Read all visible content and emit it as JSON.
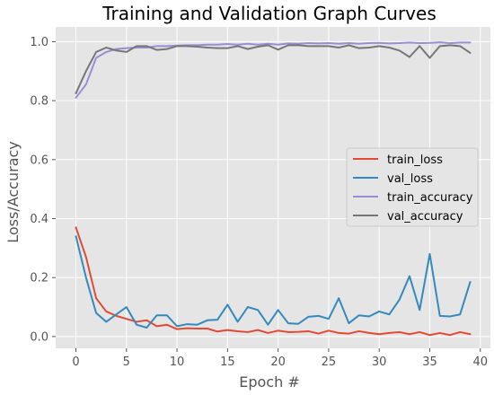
{
  "chart_data": {
    "type": "line",
    "title": "Training and Validation Graph Curves",
    "xlabel": "Epoch #",
    "ylabel": "Loss/Accuracy",
    "xlim": [
      -2,
      41
    ],
    "ylim": [
      -0.04,
      1.05
    ],
    "xticks": [
      0,
      5,
      10,
      15,
      20,
      25,
      30,
      35,
      40
    ],
    "yticks": [
      0.0,
      0.2,
      0.4,
      0.6,
      0.8,
      1.0
    ],
    "xtick_labels": [
      "0",
      "5",
      "10",
      "15",
      "20",
      "25",
      "30",
      "35",
      "40"
    ],
    "ytick_labels": [
      "0.0",
      "0.2",
      "0.4",
      "0.6",
      "0.8",
      "1.0"
    ],
    "grid": true,
    "legend_position": "center-right",
    "x": [
      0,
      1,
      2,
      3,
      4,
      5,
      6,
      7,
      8,
      9,
      10,
      11,
      12,
      13,
      14,
      15,
      16,
      17,
      18,
      19,
      20,
      21,
      22,
      23,
      24,
      25,
      26,
      27,
      28,
      29,
      30,
      31,
      32,
      33,
      34,
      35,
      36,
      37,
      38,
      39
    ],
    "series": [
      {
        "name": "train_loss",
        "color": "#E24A33",
        "values": [
          0.37,
          0.27,
          0.13,
          0.085,
          0.07,
          0.06,
          0.05,
          0.055,
          0.035,
          0.04,
          0.025,
          0.028,
          0.027,
          0.027,
          0.017,
          0.022,
          0.018,
          0.015,
          0.022,
          0.012,
          0.02,
          0.015,
          0.016,
          0.018,
          0.01,
          0.02,
          0.012,
          0.01,
          0.018,
          0.012,
          0.008,
          0.012,
          0.015,
          0.008,
          0.015,
          0.005,
          0.012,
          0.005,
          0.015,
          0.008
        ]
      },
      {
        "name": "val_loss",
        "color": "#348ABD",
        "values": [
          0.34,
          0.2,
          0.08,
          0.05,
          0.075,
          0.1,
          0.04,
          0.03,
          0.072,
          0.072,
          0.035,
          0.042,
          0.04,
          0.055,
          0.057,
          0.108,
          0.05,
          0.1,
          0.09,
          0.04,
          0.09,
          0.045,
          0.043,
          0.067,
          0.07,
          0.06,
          0.13,
          0.045,
          0.072,
          0.068,
          0.085,
          0.075,
          0.125,
          0.205,
          0.09,
          0.28,
          0.07,
          0.068,
          0.075,
          0.185
        ]
      },
      {
        "name": "train_accuracy",
        "color": "#988ED5",
        "values": [
          0.81,
          0.855,
          0.945,
          0.965,
          0.975,
          0.978,
          0.98,
          0.98,
          0.985,
          0.985,
          0.987,
          0.988,
          0.988,
          0.99,
          0.99,
          0.992,
          0.99,
          0.993,
          0.99,
          0.993,
          0.99,
          0.994,
          0.993,
          0.995,
          0.994,
          0.995,
          0.993,
          0.995,
          0.993,
          0.995,
          0.996,
          0.994,
          0.995,
          0.997,
          0.995,
          0.996,
          0.998,
          0.995,
          0.997,
          0.997
        ]
      },
      {
        "name": "val_accuracy",
        "color": "#777777",
        "values": [
          0.825,
          0.9,
          0.965,
          0.98,
          0.97,
          0.965,
          0.985,
          0.985,
          0.972,
          0.975,
          0.985,
          0.985,
          0.983,
          0.98,
          0.978,
          0.978,
          0.985,
          0.975,
          0.983,
          0.988,
          0.973,
          0.988,
          0.988,
          0.985,
          0.985,
          0.985,
          0.98,
          0.988,
          0.978,
          0.98,
          0.985,
          0.98,
          0.97,
          0.948,
          0.985,
          0.945,
          0.985,
          0.988,
          0.985,
          0.962
        ]
      }
    ]
  }
}
